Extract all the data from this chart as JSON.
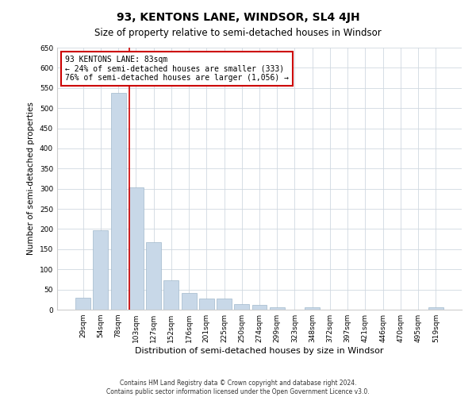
{
  "title": "93, KENTONS LANE, WINDSOR, SL4 4JH",
  "subtitle": "Size of property relative to semi-detached houses in Windsor",
  "xlabel": "Distribution of semi-detached houses by size in Windsor",
  "ylabel": "Number of semi-detached properties",
  "footnote1": "Contains HM Land Registry data © Crown copyright and database right 2024.",
  "footnote2": "Contains public sector information licensed under the Open Government Licence v3.0.",
  "categories": [
    "29sqm",
    "54sqm",
    "78sqm",
    "103sqm",
    "127sqm",
    "152sqm",
    "176sqm",
    "201sqm",
    "225sqm",
    "250sqm",
    "274sqm",
    "299sqm",
    "323sqm",
    "348sqm",
    "372sqm",
    "397sqm",
    "421sqm",
    "446sqm",
    "470sqm",
    "495sqm",
    "519sqm"
  ],
  "values": [
    30,
    197,
    537,
    303,
    168,
    72,
    41,
    27,
    27,
    13,
    12,
    5,
    0,
    5,
    0,
    0,
    0,
    0,
    0,
    0,
    5
  ],
  "bar_color": "#c8d8e8",
  "bar_edge_color": "#a0b8cc",
  "ylim": [
    0,
    650
  ],
  "yticks": [
    0,
    50,
    100,
    150,
    200,
    250,
    300,
    350,
    400,
    450,
    500,
    550,
    600,
    650
  ],
  "red_line_x": 2.62,
  "annotation_text": "93 KENTONS LANE: 83sqm\n← 24% of semi-detached houses are smaller (333)\n76% of semi-detached houses are larger (1,056) →",
  "annotation_box_color": "#ffffff",
  "annotation_border_color": "#cc0000",
  "grid_color": "#d0d8e0",
  "background_color": "#ffffff",
  "title_fontsize": 10,
  "subtitle_fontsize": 8.5,
  "ylabel_fontsize": 7.5,
  "xlabel_fontsize": 8,
  "annotation_fontsize": 7,
  "tick_fontsize": 6.5,
  "footnote_fontsize": 5.5
}
